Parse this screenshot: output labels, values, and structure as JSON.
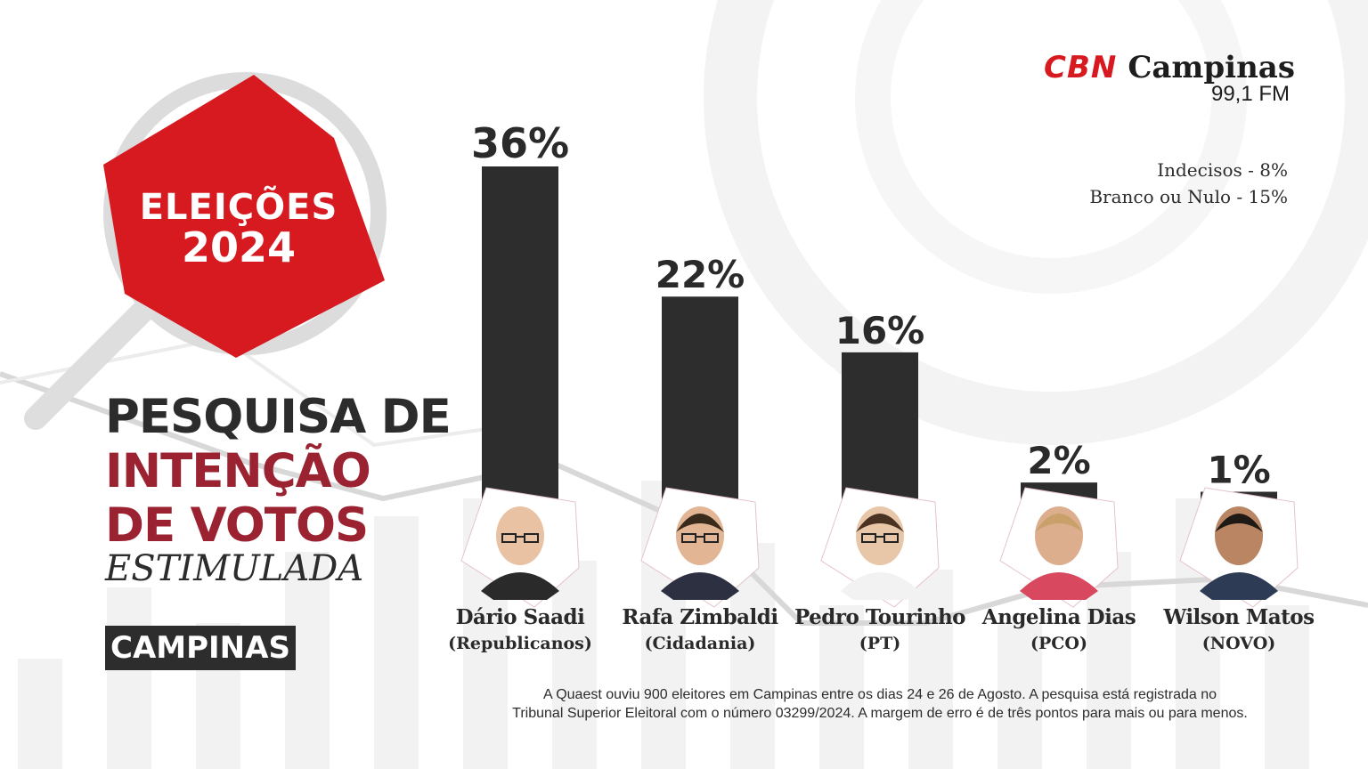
{
  "badge": {
    "line1": "ELEIÇÕES",
    "line2": "2024"
  },
  "headline": {
    "line1": "PESQUISA DE",
    "line2": "INTENÇÃO",
    "line3": "DE VOTOS",
    "line4": "ESTIMULADA"
  },
  "city_label": "CAMPINAS",
  "logo": {
    "brand": "CBN",
    "city": "Campinas",
    "frequency": "99,1 FM"
  },
  "side_notes": {
    "undecided": "Indecisos - 8%",
    "blank_null": "Branco ou Nulo - 15%"
  },
  "footnote": {
    "line1": "A Quaest ouviu 900 eleitores em Campinas entre os dias 24 e 26 de Agosto. A pesquisa está registrada no",
    "line2": "Tribunal Superior Eleitoral com o número 03299/2024. A margem de erro é de três pontos para mais ou para menos."
  },
  "colors": {
    "accent_red": "#d71920",
    "headline_red": "#9b2230",
    "bar": "#2d2d2d"
  },
  "chart_data": {
    "type": "bar",
    "categories": [
      "Dário Saadi",
      "Rafa Zimbaldi",
      "Pedro Tourinho",
      "Angelina Dias",
      "Wilson Matos"
    ],
    "parties": [
      "(Republicanos)",
      "(Cidadania)",
      "(PT)",
      "(PCO)",
      "(NOVO)"
    ],
    "values": [
      36,
      22,
      16,
      2,
      1
    ],
    "value_labels": [
      "36%",
      "22%",
      "16%",
      "2%",
      "1%"
    ],
    "ylim": [
      0,
      40
    ],
    "grid": false,
    "title": "",
    "xlabel": "",
    "ylabel": ""
  }
}
